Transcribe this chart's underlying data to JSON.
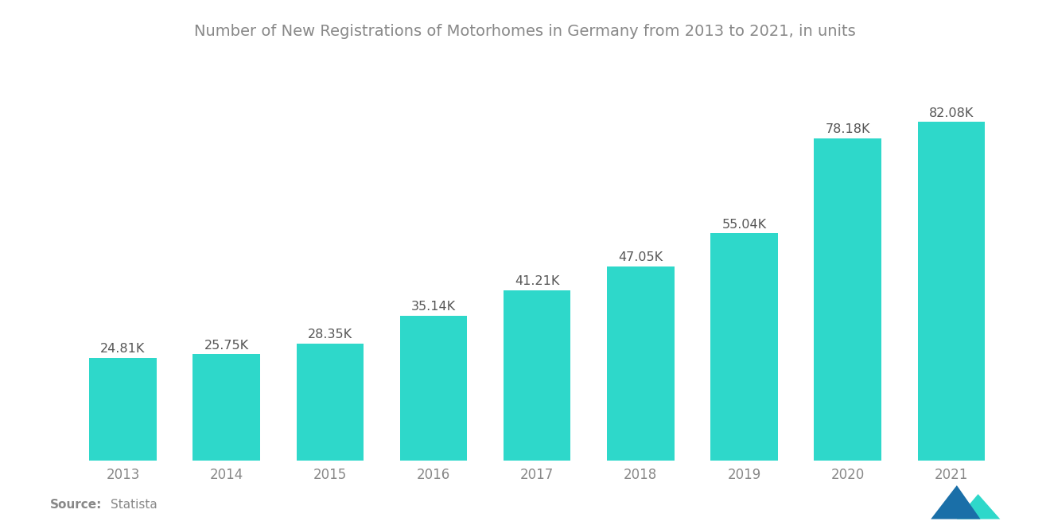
{
  "title": "Number of New Registrations of Motorhomes in Germany from 2013 to 2021, in units",
  "years": [
    "2013",
    "2014",
    "2015",
    "2016",
    "2017",
    "2018",
    "2019",
    "2020",
    "2021"
  ],
  "values": [
    24810,
    25750,
    28350,
    35140,
    41210,
    47050,
    55040,
    78180,
    82080
  ],
  "labels": [
    "24.81K",
    "25.75K",
    "28.35K",
    "35.14K",
    "41.21K",
    "47.05K",
    "55.04K",
    "78.18K",
    "82.08K"
  ],
  "bar_color": "#2ED8CA",
  "background_color": "#ffffff",
  "title_color": "#888888",
  "label_color": "#555555",
  "tick_color": "#888888",
  "title_fontsize": 14,
  "label_fontsize": 11.5,
  "tick_fontsize": 12,
  "source_fontsize": 11,
  "ylim": [
    0,
    95000
  ],
  "bar_width": 0.65,
  "logo_left_color": "#1a6fa8",
  "logo_right_color": "#2ED8CA"
}
